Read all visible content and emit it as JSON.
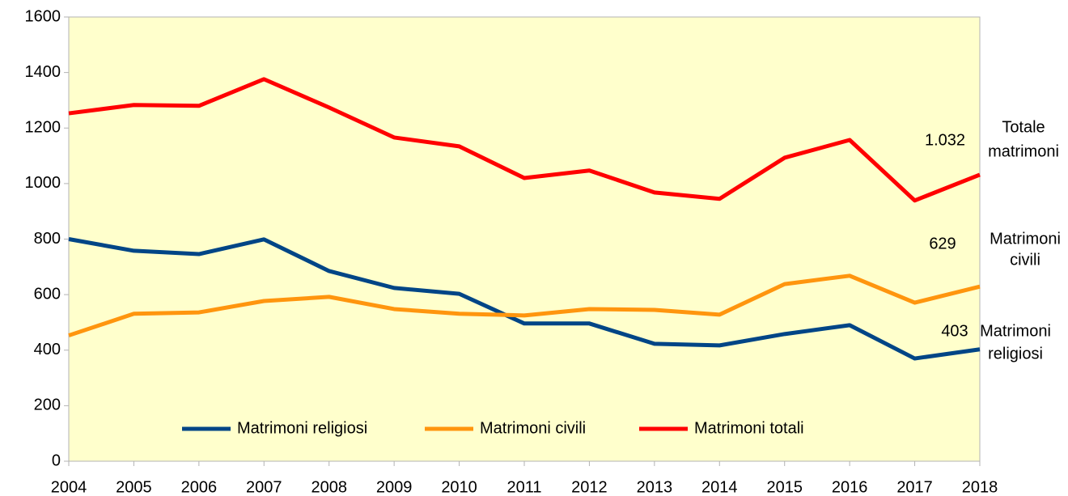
{
  "chart_data": {
    "type": "line",
    "categories": [
      "2004",
      "2005",
      "2006",
      "2007",
      "2008",
      "2009",
      "2010",
      "2011",
      "2012",
      "2013",
      "2014",
      "2015",
      "2016",
      "2017",
      "2018"
    ],
    "series": [
      {
        "name": "Matrimoni religiosi",
        "color": "#004586",
        "values": [
          800,
          758,
          746,
          799,
          685,
          624,
          603,
          496,
          496,
          423,
          417,
          458,
          490,
          370,
          403
        ],
        "value_labels": [
          null,
          null,
          null,
          null,
          null,
          null,
          null,
          null,
          null,
          null,
          null,
          null,
          null,
          null,
          "403"
        ]
      },
      {
        "name": "Matrimoni civili",
        "color": "#ff950e",
        "values": [
          453,
          531,
          536,
          577,
          592,
          548,
          531,
          525,
          548,
          545,
          528,
          638,
          668,
          571,
          629
        ],
        "value_labels": [
          null,
          null,
          null,
          null,
          null,
          null,
          null,
          null,
          null,
          null,
          null,
          null,
          null,
          null,
          "629"
        ]
      },
      {
        "name": "Matrimoni totali",
        "color": "#ff0000",
        "values": [
          1253,
          1283,
          1280,
          1376,
          1274,
          1166,
          1134,
          1020,
          1047,
          968,
          945,
          1093,
          1157,
          939,
          1032
        ],
        "value_labels": [
          null,
          null,
          null,
          null,
          null,
          null,
          null,
          null,
          null,
          null,
          null,
          null,
          null,
          null,
          "1.032"
        ]
      }
    ],
    "end_labels": [
      [
        "Matrimoni",
        "religiosi"
      ],
      [
        "Matrimoni",
        "civili"
      ],
      [
        "Totale",
        "matrimoni"
      ]
    ],
    "ylim": [
      0,
      1600
    ],
    "yticks": [
      0,
      200,
      400,
      600,
      800,
      1000,
      1200,
      1400,
      1600
    ],
    "legend": "bottom",
    "plot_background": "#ffffcc"
  }
}
